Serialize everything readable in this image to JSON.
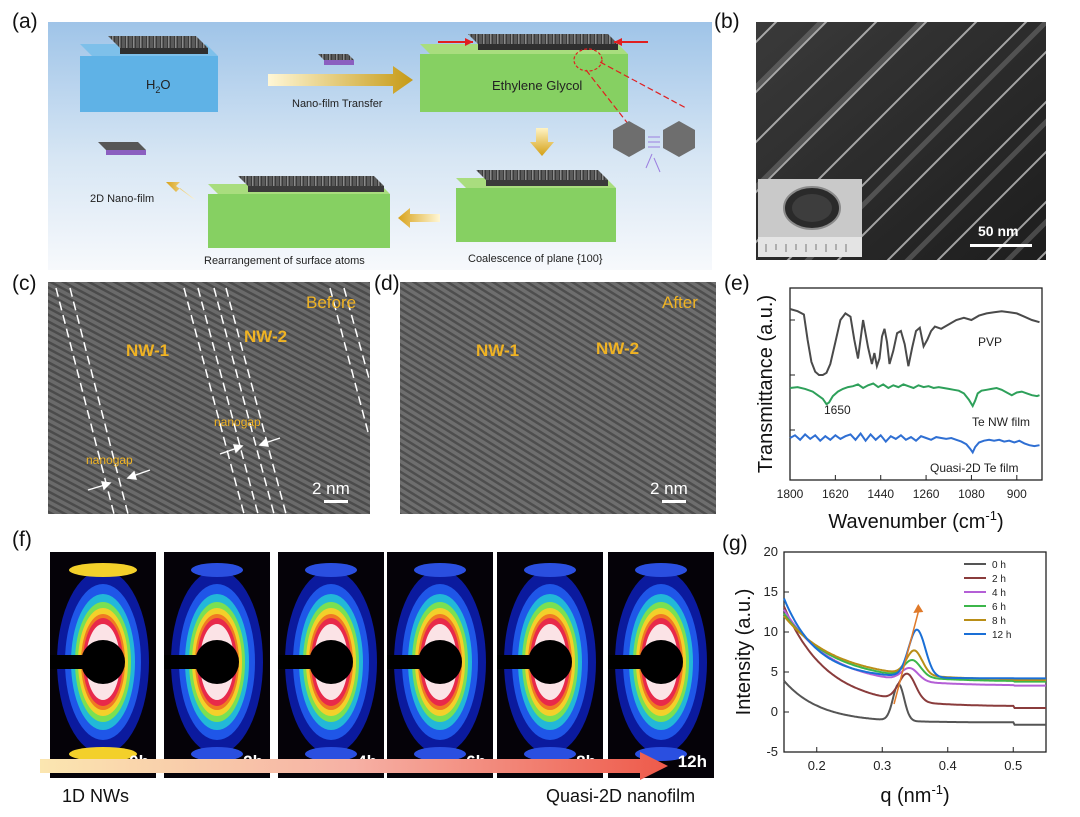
{
  "panels": {
    "a": {
      "label": "(a)",
      "steps": {
        "water": "H",
        "water_sub": "2",
        "water_tail": "O",
        "transfer": "Nano-film Transfer",
        "eg": "Ethylene Glycol",
        "coalescence": "Coalescence of plane {100}",
        "rearrange": "Rearrangement of surface atoms",
        "film2d": "2D Nano-film"
      }
    },
    "b": {
      "label": "(b)",
      "scale": "50 nm"
    },
    "c": {
      "label": "(c)",
      "state": "Before",
      "nw1": "NW-1",
      "nw2": "NW-2",
      "gap1": "nanogap",
      "gap2": "nanogap",
      "scale": "2 nm"
    },
    "d": {
      "label": "(d)",
      "state": "After",
      "nw1": "NW-1",
      "nw2": "NW-2",
      "scale": "2 nm"
    },
    "e": {
      "label": "(e)"
    },
    "f": {
      "label": "(f)",
      "times": [
        "0h",
        "2h",
        "4h",
        "6h",
        "8h",
        "12h"
      ],
      "arrow_start": "1D NWs",
      "arrow_end": "Quasi-2D nanofilm"
    },
    "g": {
      "label": "(g)"
    }
  },
  "chart_data": [
    {
      "panel": "e",
      "type": "line",
      "xlabel": "Wavenumber (cm",
      "xlabel_sup": "-1",
      "xlabel_tail": ")",
      "ylabel": "Transmittance (a.u.)",
      "xlim": [
        1800,
        800
      ],
      "xticks": [
        1800,
        1620,
        1440,
        1260,
        1080,
        900
      ],
      "annotation": "1650",
      "series": [
        {
          "name": "PVP",
          "color": "#4a4a4a",
          "x": [
            1800,
            1770,
            1745,
            1730,
            1715,
            1700,
            1685,
            1670,
            1655,
            1640,
            1620,
            1600,
            1580,
            1560,
            1545,
            1530,
            1510,
            1490,
            1475,
            1465,
            1455,
            1445,
            1435,
            1425,
            1415,
            1405,
            1390,
            1375,
            1360,
            1345,
            1330,
            1315,
            1300,
            1285,
            1270,
            1255,
            1240,
            1225,
            1200,
            1170,
            1140,
            1110,
            1080,
            1050,
            1020,
            990,
            960,
            930,
            900,
            870,
            840,
            810
          ],
          "y": [
            0.9,
            0.88,
            0.85,
            0.62,
            0.42,
            0.33,
            0.3,
            0.3,
            0.32,
            0.4,
            0.6,
            0.8,
            0.86,
            0.83,
            0.62,
            0.45,
            0.8,
            0.55,
            0.4,
            0.5,
            0.38,
            0.45,
            0.65,
            0.72,
            0.6,
            0.4,
            0.52,
            0.68,
            0.7,
            0.58,
            0.38,
            0.55,
            0.7,
            0.73,
            0.56,
            0.62,
            0.7,
            0.74,
            0.72,
            0.76,
            0.8,
            0.82,
            0.8,
            0.84,
            0.86,
            0.87,
            0.88,
            0.87,
            0.86,
            0.83,
            0.8,
            0.78
          ]
        },
        {
          "name": "Te NW film",
          "color": "#2ea05a",
          "x": [
            1800,
            1770,
            1740,
            1710,
            1690,
            1670,
            1655,
            1645,
            1630,
            1610,
            1590,
            1570,
            1550,
            1530,
            1510,
            1490,
            1470,
            1450,
            1430,
            1410,
            1390,
            1370,
            1350,
            1330,
            1310,
            1290,
            1270,
            1250,
            1230,
            1210,
            1190,
            1170,
            1150,
            1130,
            1110,
            1090,
            1075,
            1065,
            1055,
            1040,
            1020,
            1000,
            980,
            960,
            940,
            920,
            900,
            880,
            860,
            840,
            820,
            810
          ],
          "y": [
            0.0,
            0.01,
            -0.01,
            -0.04,
            -0.08,
            -0.12,
            -0.18,
            -0.16,
            -0.09,
            -0.04,
            -0.01,
            0.01,
            0.02,
            0.04,
            0.0,
            0.03,
            0.05,
            0.01,
            0.04,
            0.0,
            0.03,
            0.01,
            0.04,
            0.02,
            0.0,
            0.03,
            0.01,
            0.02,
            0.0,
            0.01,
            0.0,
            -0.01,
            -0.02,
            -0.03,
            -0.06,
            -0.13,
            -0.2,
            -0.14,
            -0.06,
            -0.03,
            -0.02,
            -0.01,
            0.0,
            -0.02,
            -0.05,
            -0.08,
            -0.05,
            -0.04,
            -0.06,
            -0.08,
            -0.09,
            -0.08
          ]
        },
        {
          "name": "Quasi-2D Te film",
          "color": "#2f6fd3",
          "x": [
            1800,
            1780,
            1760,
            1740,
            1720,
            1700,
            1680,
            1660,
            1640,
            1620,
            1600,
            1580,
            1560,
            1540,
            1520,
            1500,
            1480,
            1460,
            1440,
            1420,
            1400,
            1380,
            1360,
            1340,
            1320,
            1300,
            1280,
            1260,
            1240,
            1220,
            1200,
            1180,
            1160,
            1140,
            1120,
            1100,
            1085,
            1075,
            1065,
            1050,
            1030,
            1010,
            990,
            970,
            950,
            930,
            910,
            890,
            870,
            850,
            830,
            810
          ],
          "y": [
            0.0,
            0.03,
            -0.02,
            0.04,
            -0.01,
            0.03,
            -0.03,
            0.02,
            -0.02,
            0.03,
            -0.01,
            0.02,
            0.04,
            -0.02,
            0.05,
            -0.03,
            0.04,
            -0.02,
            0.03,
            -0.04,
            0.02,
            -0.01,
            0.03,
            -0.02,
            0.01,
            -0.03,
            0.02,
            0.0,
            -0.02,
            0.01,
            0.0,
            -0.01,
            0.0,
            -0.02,
            -0.04,
            -0.07,
            -0.12,
            -0.16,
            -0.1,
            -0.05,
            -0.03,
            -0.02,
            -0.03,
            -0.02,
            -0.04,
            -0.03,
            -0.05,
            -0.03,
            -0.06,
            -0.08,
            -0.09,
            -0.08
          ]
        }
      ],
      "labels": [
        "PVP",
        "Te NW film",
        "Quasi-2D Te film"
      ]
    },
    {
      "panel": "g",
      "type": "line",
      "xlabel": "q (nm",
      "xlabel_sup": "-1",
      "xlabel_tail": ")",
      "ylabel": "Intensity (a.u.)",
      "xlim": [
        0.15,
        0.55
      ],
      "ylim": [
        -5,
        20
      ],
      "xticks": [
        0.2,
        0.3,
        0.4,
        0.5
      ],
      "yticks": [
        -5,
        0,
        5,
        10,
        15,
        20
      ],
      "legend_position": "top-right",
      "series": [
        {
          "name": "0 h",
          "color": "#555555",
          "peak": 3.5,
          "base": -1.3,
          "amp": 5.2,
          "tau": 0.055,
          "pos": 0.325,
          "width": 0.012,
          "end": -1.6
        },
        {
          "name": "2 h",
          "color": "#8a3c3c",
          "peak": 4.8,
          "base": 0.7,
          "amp": 12.5,
          "tau": 0.065,
          "pos": 0.338,
          "width": 0.018,
          "end": 0.5
        },
        {
          "name": "4 h",
          "color": "#b45fd6",
          "peak": 5.5,
          "base": 3.3,
          "amp": 9.5,
          "tau": 0.07,
          "pos": 0.342,
          "width": 0.018,
          "end": 3.3
        },
        {
          "name": "6 h",
          "color": "#3cb64a",
          "peak": 6.5,
          "base": 3.8,
          "amp": 8.5,
          "tau": 0.075,
          "pos": 0.346,
          "width": 0.018,
          "end": 3.8
        },
        {
          "name": "8 h",
          "color": "#b98e17",
          "peak": 7.7,
          "base": 4.0,
          "amp": 8.0,
          "tau": 0.08,
          "pos": 0.349,
          "width": 0.017,
          "end": 4.0
        },
        {
          "name": "12 h",
          "color": "#1a6fd6",
          "peak": 10.3,
          "base": 4.2,
          "amp": 10.0,
          "tau": 0.05,
          "pos": 0.353,
          "width": 0.018,
          "end": 4.2
        }
      ]
    }
  ]
}
